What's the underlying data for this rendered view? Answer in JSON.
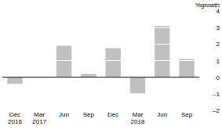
{
  "chart_data": {
    "type": "bar",
    "y_label": "%growth",
    "categories": [
      "Dec 2016",
      "Mar 2017",
      "Jun",
      "Sep",
      "Dec",
      "Mar 2018",
      "Jun",
      "Sep"
    ],
    "values": [
      -0.4,
      0,
      1.9,
      0.2,
      1.75,
      -1.0,
      3.1,
      1.1
    ],
    "color": "#c0c0c0",
    "ylim": [
      -2,
      4
    ],
    "yticks": [
      {
        "value": -2,
        "label": "–2"
      },
      {
        "value": -1,
        "label": "–1"
      },
      0,
      1,
      2,
      3,
      4
    ],
    "grid": true
  }
}
